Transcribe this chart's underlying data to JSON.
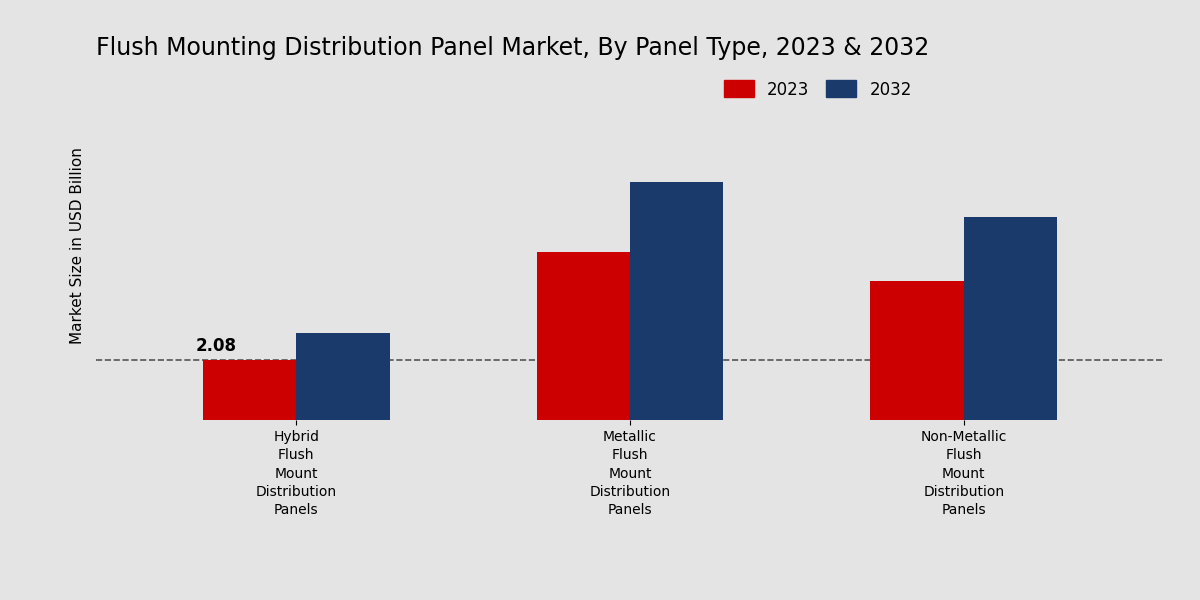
{
  "title": "Flush Mounting Distribution Panel Market, By Panel Type, 2023 & 2032",
  "ylabel": "Market Size in USD Billion",
  "categories": [
    "Hybrid\nFlush\nMount\nDistribution\nPanels",
    "Metallic\nFlush\nMount\nDistribution\nPanels",
    "Non-Metallic\nFlush\nMount\nDistribution\nPanels"
  ],
  "values_2023": [
    2.08,
    5.8,
    4.8
  ],
  "values_2032": [
    3.0,
    8.2,
    7.0
  ],
  "color_2023": "#cc0000",
  "color_2032": "#1a3a6b",
  "annotation_label": "2.08",
  "annotation_category": 0,
  "background_color": "#e4e4e4",
  "bar_width": 0.28,
  "ylim": [
    0,
    12
  ],
  "legend_labels": [
    "2023",
    "2032"
  ],
  "dashed_line_y": 2.08,
  "title_fontsize": 17,
  "label_fontsize": 11,
  "tick_fontsize": 10,
  "bottom_bar_color": "#aa0000"
}
